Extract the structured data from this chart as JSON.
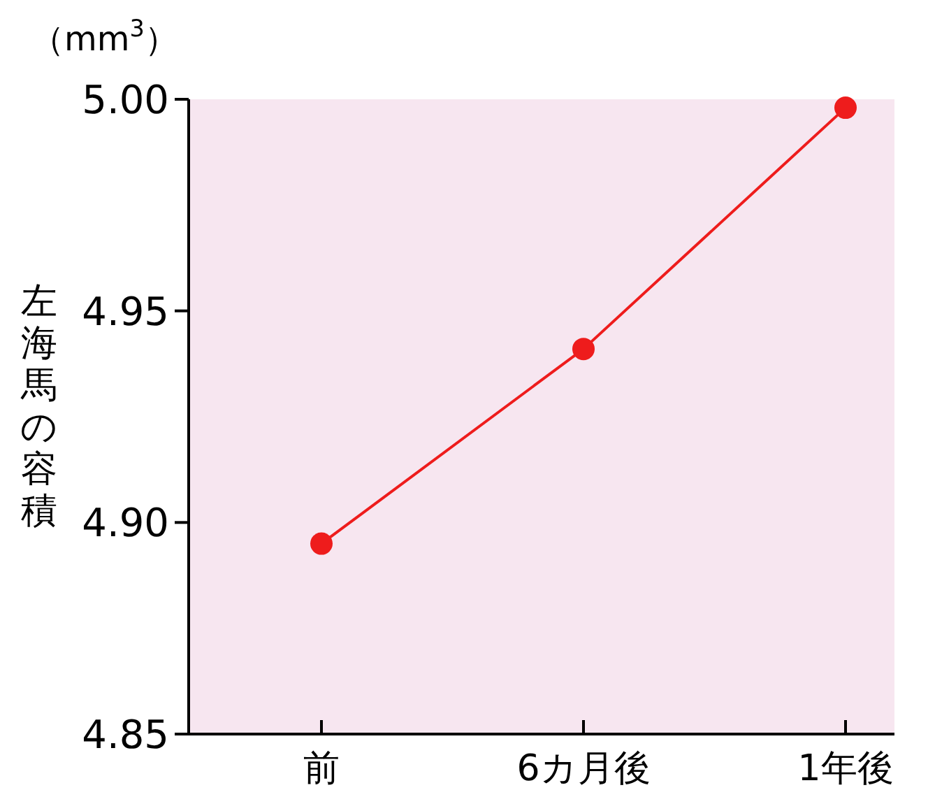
{
  "chart_data": {
    "type": "line",
    "ylabel": "左海馬の容積",
    "annotations": [
      "（mm$^{3}$）"
    ],
    "categories": [
      "前",
      "6カ月後",
      "1年後"
    ],
    "series": [
      {
        "color": "#ee1c1c",
        "values": [
          4.895,
          4.941,
          4.998
        ]
      }
    ],
    "ylim": [
      4.85,
      5.0
    ],
    "yticks": [
      {
        "value": 4.85,
        "label": "4.85"
      },
      {
        "value": 4.9,
        "label": "4.90"
      },
      {
        "value": 4.95,
        "label": "4.95"
      },
      {
        "value": 5.0,
        "label": "5.00"
      }
    ],
    "marker": "circle",
    "line_style": "solid",
    "grid": false
  }
}
